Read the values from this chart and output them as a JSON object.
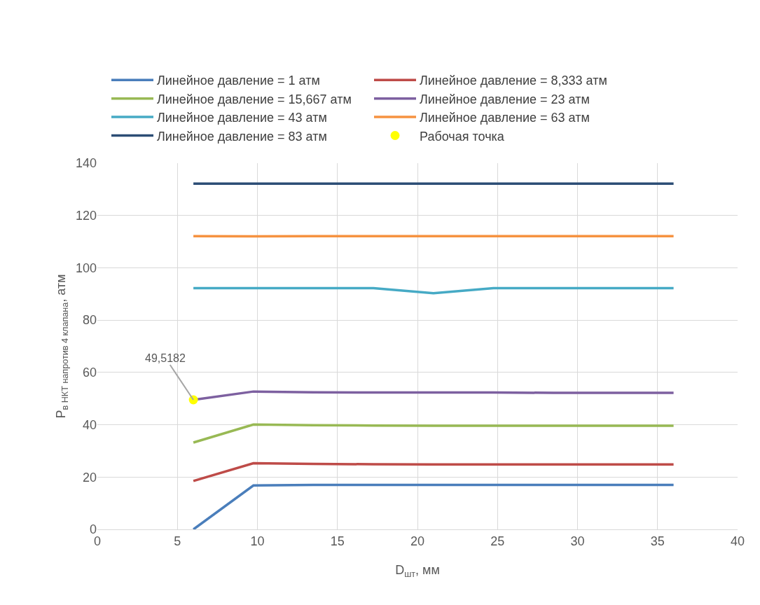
{
  "chart_data": {
    "type": "line",
    "xlabel": "D$_{шт}$, мм",
    "ylabel": "P$_{в НКТ напротив 4 клапана}$, атм",
    "x": [
      6,
      9.75,
      13.5,
      17.25,
      21,
      24.75,
      28.5,
      32.25,
      36
    ],
    "series": [
      {
        "name": "Линейное давление = 1 атм",
        "color": "#4a7ebb",
        "values": [
          0,
          16.8,
          17,
          17,
          17,
          17,
          17,
          17,
          17
        ]
      },
      {
        "name": "Линейное давление = 8,333 атм",
        "color": "#be4b48",
        "values": [
          18.5,
          25.3,
          25,
          24.9,
          24.8,
          24.8,
          24.8,
          24.8,
          24.8
        ]
      },
      {
        "name": "Линейное давление = 15,667 атм",
        "color": "#98b954",
        "values": [
          33.2,
          40.1,
          39.8,
          39.7,
          39.6,
          39.6,
          39.6,
          39.6,
          39.6
        ]
      },
      {
        "name": "Линейное давление = 23 атм",
        "color": "#7d60a0",
        "values": [
          49.5182,
          52.7,
          52.4,
          52.3,
          52.3,
          52.3,
          52.2,
          52.2,
          52.2
        ]
      },
      {
        "name": "Линейное давление = 43 атм",
        "color": "#46aac5",
        "values": [
          92.2,
          92.2,
          92.2,
          92.2,
          90.3,
          92.2,
          92.2,
          92.2,
          92.2
        ]
      },
      {
        "name": "Линейное давление = 63 атм",
        "color": "#f69240",
        "values": [
          112.1,
          112,
          112.1,
          112.1,
          112.1,
          112.1,
          112.1,
          112.1,
          112.1
        ]
      },
      {
        "name": "Линейное давление = 83 атм",
        "color": "#2c4d75",
        "values": [
          132.2,
          132.2,
          132.2,
          132.2,
          132.2,
          132.2,
          132.2,
          132.2,
          132.2
        ]
      },
      {
        "name": "Рабочая точка",
        "type": "scatter",
        "marker": "circle",
        "color": "#ffff00",
        "x": [
          6
        ],
        "values": [
          49.5182
        ],
        "value_labels": [
          "49,5182"
        ]
      }
    ],
    "xlim": [
      0,
      40
    ],
    "xticks": [
      0,
      5,
      10,
      15,
      20,
      25,
      30,
      35,
      40
    ],
    "ylim": [
      0,
      140
    ],
    "yticks": [
      0,
      20,
      40,
      60,
      80,
      100,
      120,
      140
    ],
    "grid": true,
    "legend": "top",
    "marker": "none",
    "line_style": "solid"
  }
}
